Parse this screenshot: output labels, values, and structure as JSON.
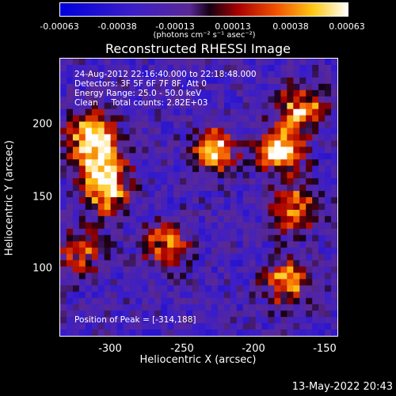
{
  "colorbar": {
    "ticks": [
      "-0.00063",
      "-0.00038",
      "-0.00013",
      "0.00013",
      "0.00038",
      "0.00063"
    ],
    "units": "(photons cm⁻² s⁻¹ asec⁻²)"
  },
  "chart_data": {
    "type": "heatmap",
    "title": "Reconstructed RHESSI Image",
    "xlabel": "Heliocentric X (arcsec)",
    "ylabel": "Heliocentric Y (arcsec)",
    "xlim": [
      -333,
      -140
    ],
    "ylim": [
      52,
      244
    ],
    "x_ticks": [
      -300,
      -250,
      -200,
      -150
    ],
    "y_ticks": [
      100,
      150,
      200
    ],
    "value_range": [
      -0.00063,
      0.00063
    ],
    "colormap": "blue-purple-red-yellow-white",
    "peak": [
      -314,
      188
    ],
    "bright_regions": [
      {
        "x": -310,
        "y": 190,
        "intensity": 0.00063
      },
      {
        "x": -305,
        "y": 168,
        "intensity": 0.00045
      },
      {
        "x": -300,
        "y": 150,
        "intensity": 0.00038
      },
      {
        "x": -225,
        "y": 180,
        "intensity": 0.0005
      },
      {
        "x": -180,
        "y": 180,
        "intensity": 0.00055
      },
      {
        "x": -165,
        "y": 210,
        "intensity": 0.00045
      },
      {
        "x": -170,
        "y": 140,
        "intensity": 0.0004
      },
      {
        "x": -175,
        "y": 90,
        "intensity": 0.00038
      },
      {
        "x": -260,
        "y": 115,
        "intensity": 0.0003
      },
      {
        "x": -320,
        "y": 110,
        "intensity": 0.00025
      }
    ],
    "annotations": {
      "time_range": "24-Aug-2012 22:16:40.000 to 22:18:48.000",
      "detectors": "Detectors: 3F 5F 6F 7F 8F, Att 0",
      "energy": "Energy Range: 25.0 - 50.0 keV",
      "clean": "Clean     Total counts: 2.82E+03",
      "peak_label": "Position of Peak = [-314,188]"
    }
  },
  "footer": {
    "timestamp": "13-May-2022 20:43"
  }
}
